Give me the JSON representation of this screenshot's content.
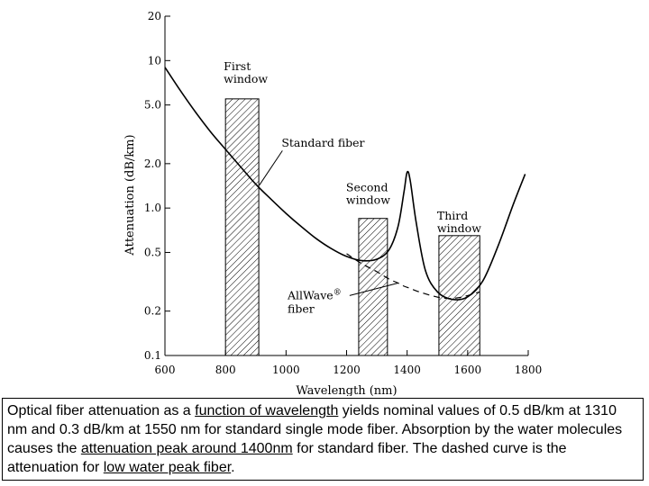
{
  "chart_data": {
    "type": "line",
    "xlabel": "Wavelength (nm)",
    "ylabel": "Attenuation (dB/km)",
    "xlim": [
      600,
      1800
    ],
    "ylim": [
      0.1,
      20
    ],
    "yscale": "log",
    "x_ticks": [
      "600",
      "800",
      "1000",
      "1200",
      "1400",
      "1600",
      "1800"
    ],
    "y_ticks": [
      "0.1",
      "0.2",
      "0.5",
      "1.0",
      "2.0",
      "5.0",
      "10",
      "20"
    ],
    "y_tick_values": [
      0.1,
      0.2,
      0.5,
      1.0,
      2.0,
      5.0,
      10,
      20
    ],
    "grid": false,
    "windows": [
      {
        "label_line1": "First",
        "label_line2": "window",
        "x_start": 800,
        "x_end": 910,
        "top": 5.5
      },
      {
        "label_line1": "Second",
        "label_line2": "window",
        "x_start": 1240,
        "x_end": 1335,
        "top": 0.85
      },
      {
        "label_line1": "Third",
        "label_line2": "window",
        "x_start": 1505,
        "x_end": 1640,
        "top": 0.65
      }
    ],
    "series": [
      {
        "name": "Standard fiber",
        "style": "solid",
        "x": [
          600,
          650,
          700,
          750,
          800,
          850,
          900,
          950,
          1000,
          1050,
          1100,
          1150,
          1200,
          1250,
          1300,
          1340,
          1370,
          1390,
          1400,
          1410,
          1430,
          1460,
          1500,
          1550,
          1600,
          1650,
          1700,
          1750,
          1790
        ],
        "y": [
          9.0,
          6.3,
          4.5,
          3.3,
          2.5,
          1.9,
          1.45,
          1.15,
          0.92,
          0.75,
          0.62,
          0.53,
          0.47,
          0.44,
          0.45,
          0.52,
          0.75,
          1.3,
          1.75,
          1.55,
          0.8,
          0.38,
          0.27,
          0.24,
          0.25,
          0.32,
          0.55,
          1.05,
          1.7
        ]
      },
      {
        "name": "AllWave® fiber",
        "style": "dashed",
        "x": [
          1200,
          1250,
          1300,
          1340,
          1370,
          1390,
          1410,
          1440,
          1480,
          1520,
          1560,
          1600,
          1640
        ],
        "y": [
          0.49,
          0.42,
          0.37,
          0.33,
          0.31,
          0.295,
          0.285,
          0.27,
          0.255,
          0.245,
          0.245,
          0.255,
          0.27
        ]
      }
    ],
    "annotations": {
      "standard_fiber": "Standard fiber",
      "allwave_line1": "AllWave",
      "allwave_reg": "®",
      "allwave_line2": "fiber"
    }
  },
  "caption": {
    "part1": "Optical fiber attenuation as a ",
    "link1": "function of wavelength",
    "part2": " yields nominal values  of 0.5 dB/km at 1310 nm and 0.3 dB/km at 1550 nm for standard single mode fiber. Absorption by the water molecules causes the ",
    "link2": "attenuation peak around 1400nm",
    "part3": " for standard fiber. The dashed curve is the attenuation for ",
    "link3": "low water peak fiber",
    "part4": "."
  }
}
